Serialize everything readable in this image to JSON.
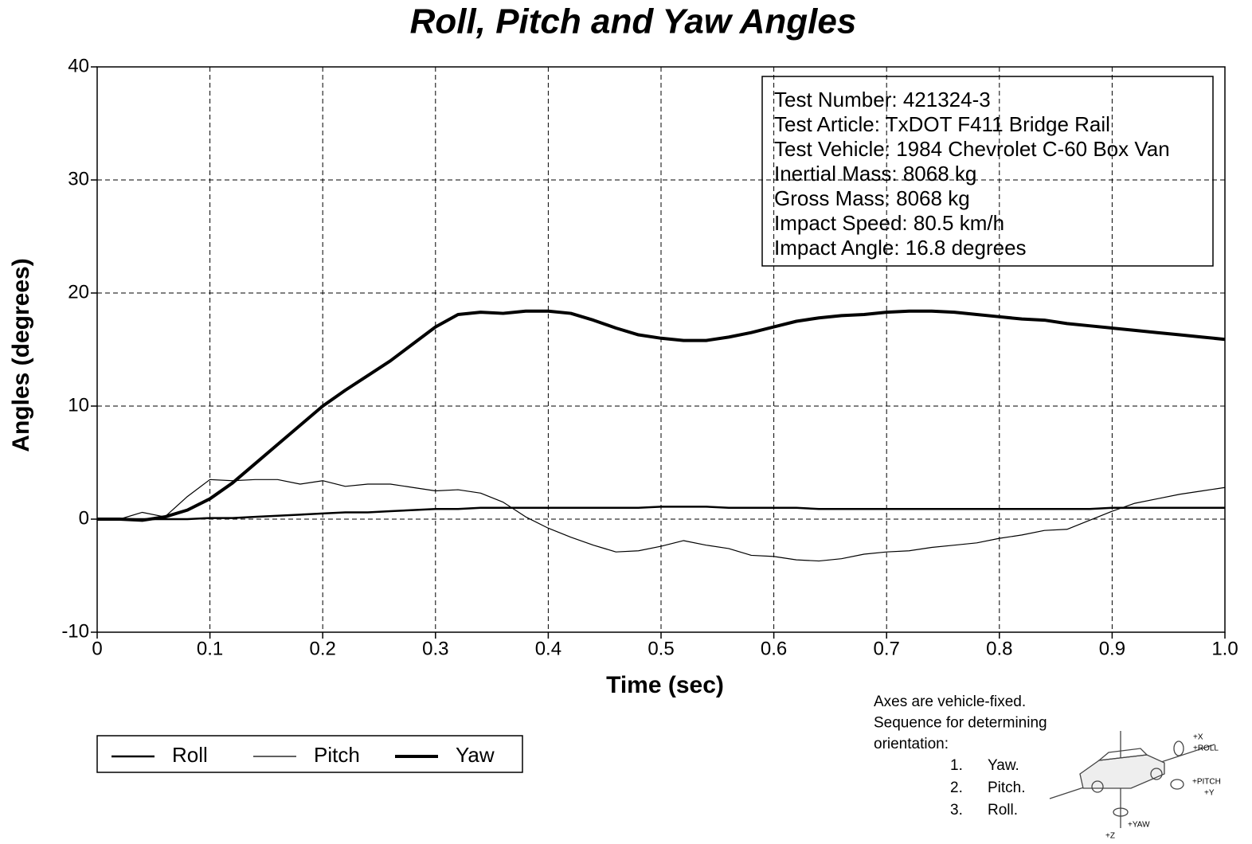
{
  "chart_data": {
    "type": "line",
    "title": "Roll, Pitch and Yaw Angles",
    "x_label": "Time (sec)",
    "y_label": "Angles (degrees)",
    "xlim": [
      0,
      1
    ],
    "ylim": [
      -10,
      40
    ],
    "xticks": [
      0,
      0.1,
      0.2,
      0.3,
      0.4,
      0.5,
      0.6,
      0.7,
      0.8,
      0.9,
      {
        "value": 1,
        "label": "1.0"
      }
    ],
    "yticks": [
      -10,
      0,
      10,
      20,
      30,
      40
    ],
    "grid": true,
    "legend": "bottom-left",
    "x": [
      0,
      0.02,
      0.04,
      0.06,
      0.08,
      0.1,
      0.12,
      0.14,
      0.16,
      0.18,
      0.2,
      0.22,
      0.24,
      0.26,
      0.28,
      0.3,
      0.32,
      0.34,
      0.36,
      0.38,
      0.4,
      0.42,
      0.44,
      0.46,
      0.48,
      0.5,
      0.52,
      0.54,
      0.56,
      0.58,
      0.6,
      0.62,
      0.64,
      0.66,
      0.68,
      0.7,
      0.72,
      0.74,
      0.76,
      0.78,
      0.8,
      0.82,
      0.84,
      0.86,
      0.88,
      0.9,
      0.92,
      0.94,
      0.96,
      0.98,
      1
    ],
    "series": [
      {
        "name": "Roll",
        "color": "#000000",
        "line_width": 2.5,
        "values": [
          0,
          0,
          0,
          0,
          0,
          0.1,
          0.1,
          0.2,
          0.3,
          0.4,
          0.5,
          0.6,
          0.6,
          0.7,
          0.8,
          0.9,
          0.9,
          1,
          1,
          1,
          1,
          1,
          1,
          1,
          1,
          1.1,
          1.1,
          1.1,
          1,
          1,
          1,
          1,
          0.9,
          0.9,
          0.9,
          0.9,
          0.9,
          0.9,
          0.9,
          0.9,
          0.9,
          0.9,
          0.9,
          0.9,
          0.9,
          1,
          1,
          1,
          1,
          1,
          1
        ]
      },
      {
        "name": "Pitch",
        "color": "#000000",
        "line_width": 1.2,
        "values": [
          0,
          0,
          0.6,
          0.2,
          2,
          3.5,
          3.4,
          3.5,
          3.5,
          3.1,
          3.4,
          2.9,
          3.1,
          3.1,
          2.8,
          2.5,
          2.6,
          2.3,
          1.5,
          0.2,
          -0.8,
          -1.6,
          -2.3,
          -2.9,
          -2.8,
          -2.4,
          -1.9,
          -2.3,
          -2.6,
          -3.2,
          -3.3,
          -3.6,
          -3.7,
          -3.5,
          -3.1,
          -2.9,
          -2.8,
          -2.5,
          -2.3,
          -2.1,
          -1.7,
          -1.4,
          -1.0,
          -0.9,
          -0.1,
          0.7,
          1.4,
          1.8,
          2.2,
          2.5,
          2.8
        ]
      },
      {
        "name": "Yaw",
        "color": "#000000",
        "line_width": 4,
        "values": [
          0,
          0,
          -0.1,
          0.2,
          0.8,
          1.8,
          3.2,
          4.9,
          6.6,
          8.3,
          10,
          11.4,
          12.7,
          14,
          15.5,
          17,
          18.1,
          18.3,
          18.2,
          18.4,
          18.4,
          18.2,
          17.6,
          16.9,
          16.3,
          16,
          15.8,
          15.8,
          16.1,
          16.5,
          17,
          17.5,
          17.8,
          18,
          18.1,
          18.3,
          18.4,
          18.4,
          18.3,
          18.1,
          17.9,
          17.7,
          17.6,
          17.3,
          17.1,
          16.9,
          16.7,
          16.5,
          16.3,
          16.1,
          15.9
        ]
      }
    ],
    "info_box": [
      "Test Number: 421324-3",
      "Test Article: TxDOT F411 Bridge Rail",
      "Test Vehicle: 1984 Chevrolet C-60 Box Van",
      "Inertial Mass: 8068 kg",
      "Gross Mass: 8068 kg",
      "Impact Speed: 80.5 km/h",
      "Impact Angle: 16.8 degrees"
    ],
    "orientation_note": {
      "lines": [
        "Axes are vehicle-fixed.",
        "Sequence for determining",
        "orientation:"
      ],
      "steps": [
        {
          "n": "1.",
          "text": "Yaw."
        },
        {
          "n": "2.",
          "text": "Pitch."
        },
        {
          "n": "3.",
          "text": "Roll."
        }
      ],
      "axis_labels": [
        "+X",
        "+ROLL",
        "+PITCH",
        "+Y",
        "+Z",
        "+YAW"
      ]
    }
  }
}
